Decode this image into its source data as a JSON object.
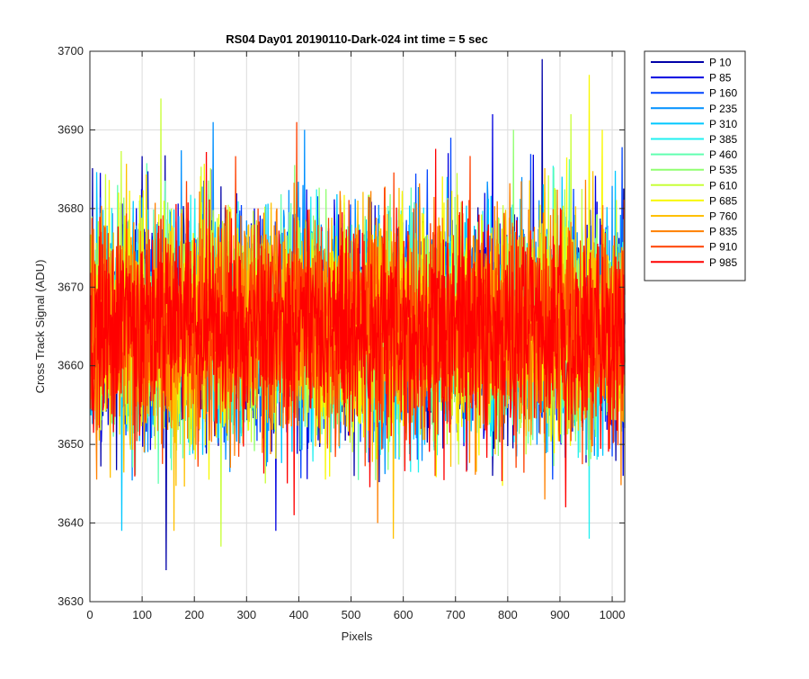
{
  "chart_data": {
    "type": "line",
    "title": "RS04 Day01 20190110-Dark-024 int time = 5 sec",
    "xlabel": "Pixels",
    "ylabel": "Cross Track Signal (ADU)",
    "xlim": [
      0,
      1024
    ],
    "ylim": [
      3630,
      3700
    ],
    "xticks": [
      0,
      100,
      200,
      300,
      400,
      500,
      600,
      700,
      800,
      900,
      1000
    ],
    "yticks": [
      3630,
      3640,
      3650,
      3660,
      3670,
      3680,
      3690,
      3700
    ],
    "grid": true,
    "legend_position": "outside-top-right",
    "n_points": 1024,
    "series_stats": {
      "center": 3665,
      "typical_range": [
        3650,
        3682
      ]
    },
    "series": [
      {
        "name": "P 10",
        "color": "#0000a8",
        "extremes": [
          [
            145,
            3634
          ],
          [
            865,
            3699
          ]
        ]
      },
      {
        "name": "P 85",
        "color": "#0000e0",
        "extremes": [
          [
            355,
            3639
          ],
          [
            770,
            3692
          ]
        ]
      },
      {
        "name": "P 160",
        "color": "#0044ff",
        "extremes": [
          [
            690,
            3689
          ]
        ]
      },
      {
        "name": "P 235",
        "color": "#0090ff",
        "extremes": [
          [
            235,
            3691
          ],
          [
            410,
            3690
          ]
        ]
      },
      {
        "name": "P 310",
        "color": "#00c8ff",
        "extremes": [
          [
            60,
            3639
          ]
        ]
      },
      {
        "name": "P 385",
        "color": "#20f0f0",
        "extremes": [
          [
            955,
            3638
          ]
        ]
      },
      {
        "name": "P 460",
        "color": "#60ffb0",
        "extremes": [
          [
            130,
            3645
          ]
        ]
      },
      {
        "name": "P 535",
        "color": "#90ff70",
        "extremes": [
          [
            810,
            3690
          ]
        ]
      },
      {
        "name": "P 610",
        "color": "#c8ff38",
        "extremes": [
          [
            135,
            3694
          ],
          [
            250,
            3637
          ],
          [
            920,
            3692
          ]
        ]
      },
      {
        "name": "P 685",
        "color": "#f8f800",
        "extremes": [
          [
            955,
            3697
          ],
          [
            980,
            3690
          ]
        ]
      },
      {
        "name": "P 760",
        "color": "#ffc000",
        "extremes": [
          [
            580,
            3638
          ],
          [
            160,
            3639
          ]
        ]
      },
      {
        "name": "P 835",
        "color": "#ff8000",
        "extremes": [
          [
            550,
            3640
          ],
          [
            870,
            3643
          ]
        ]
      },
      {
        "name": "P 910",
        "color": "#ff4000",
        "extremes": [
          [
            395,
            3691
          ]
        ]
      },
      {
        "name": "P 985",
        "color": "#ff0000",
        "extremes": [
          [
            390,
            3641
          ],
          [
            910,
            3642
          ]
        ]
      }
    ]
  }
}
